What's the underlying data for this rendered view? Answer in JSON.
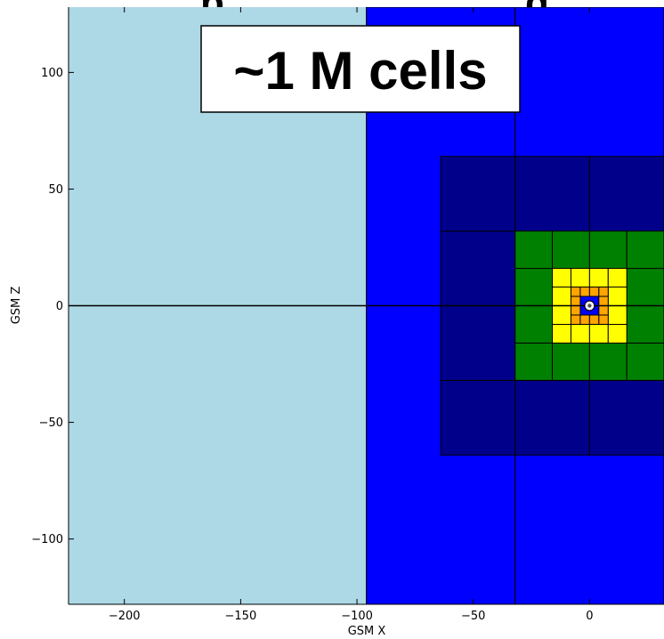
{
  "chart_data": {
    "type": "heatmap",
    "title": "",
    "xlabel": "GSM X",
    "ylabel": "GSM Z",
    "xlim": [
      -224,
      32
    ],
    "ylim": [
      -128,
      128
    ],
    "x_ticks": [
      -200,
      -150,
      -100,
      -50,
      0
    ],
    "x_tick_labels": [
      "−200",
      "−150",
      "−100",
      "−50",
      "0"
    ],
    "y_ticks": [
      -100,
      -50,
      0,
      50,
      100
    ],
    "y_tick_labels": [
      "−100",
      "−50",
      "0",
      "50",
      "100"
    ],
    "annotation": "~1 M cells",
    "partial_title_visible": "p",
    "grid": false,
    "legend": "none",
    "reference_lines": {
      "horizontal_y": 0,
      "color": "#000000"
    },
    "colors": {
      "level0": "#add8e6",
      "level1": "#0000ff",
      "level2": "#00008b",
      "level3": "#008000",
      "level4": "#ffff00",
      "level5": "#ffa500"
    },
    "refinement_levels": [
      {
        "name": "level0",
        "color": "#add8e6",
        "cells": [
          [
            -224,
            -96,
            -128,
            128
          ]
        ]
      },
      {
        "name": "level1",
        "color": "#0000ff",
        "cells": [
          [
            -96,
            -32,
            -128,
            0
          ],
          [
            -96,
            -32,
            0,
            128
          ],
          [
            -32,
            32,
            -128,
            0
          ],
          [
            -32,
            32,
            0,
            128
          ]
        ]
      },
      {
        "name": "level2",
        "color": "#00008b",
        "cells": [
          [
            -64,
            -32,
            -64,
            -32
          ],
          [
            -64,
            -32,
            -32,
            0
          ],
          [
            -64,
            -32,
            0,
            32
          ],
          [
            -64,
            -32,
            32,
            64
          ],
          [
            -32,
            0,
            -64,
            -32
          ],
          [
            -32,
            0,
            32,
            64
          ],
          [
            0,
            32,
            -64,
            -32
          ],
          [
            0,
            32,
            32,
            64
          ]
        ]
      },
      {
        "name": "level3",
        "color": "#008000",
        "cells": [
          [
            -32,
            -16,
            -32,
            -16
          ],
          [
            -32,
            -16,
            -16,
            0
          ],
          [
            -32,
            -16,
            0,
            16
          ],
          [
            -32,
            -16,
            16,
            32
          ],
          [
            -16,
            0,
            -32,
            -16
          ],
          [
            -16,
            0,
            16,
            32
          ],
          [
            0,
            16,
            -32,
            -16
          ],
          [
            0,
            16,
            16,
            32
          ],
          [
            16,
            32,
            -32,
            -16
          ],
          [
            16,
            32,
            -16,
            0
          ],
          [
            16,
            32,
            0,
            16
          ],
          [
            16,
            32,
            16,
            32
          ]
        ]
      },
      {
        "name": "level4",
        "color": "#ffff00",
        "cells": [
          [
            -16,
            -8,
            -16,
            -8
          ],
          [
            -16,
            -8,
            -8,
            0
          ],
          [
            -16,
            -8,
            0,
            8
          ],
          [
            -16,
            -8,
            8,
            16
          ],
          [
            -8,
            0,
            -16,
            -8
          ],
          [
            -8,
            0,
            8,
            16
          ],
          [
            0,
            8,
            -16,
            -8
          ],
          [
            0,
            8,
            8,
            16
          ],
          [
            8,
            16,
            -16,
            -8
          ],
          [
            8,
            16,
            -8,
            0
          ],
          [
            8,
            16,
            0,
            8
          ],
          [
            8,
            16,
            8,
            16
          ]
        ]
      },
      {
        "name": "level5",
        "color": "#ffa500",
        "cells": [
          [
            -8,
            -4,
            -8,
            -4
          ],
          [
            -8,
            -4,
            -4,
            0
          ],
          [
            -8,
            -4,
            0,
            4
          ],
          [
            -8,
            -4,
            4,
            8
          ],
          [
            -4,
            0,
            -8,
            -4
          ],
          [
            -4,
            0,
            4,
            8
          ],
          [
            0,
            4,
            -8,
            -4
          ],
          [
            0,
            4,
            4,
            8
          ],
          [
            4,
            8,
            -8,
            -4
          ],
          [
            4,
            8,
            -4,
            0
          ],
          [
            4,
            8,
            0,
            4
          ],
          [
            4,
            8,
            4,
            8
          ]
        ]
      }
    ],
    "inner_core": {
      "center": [
        0,
        0
      ],
      "color": "#ffffff"
    }
  }
}
